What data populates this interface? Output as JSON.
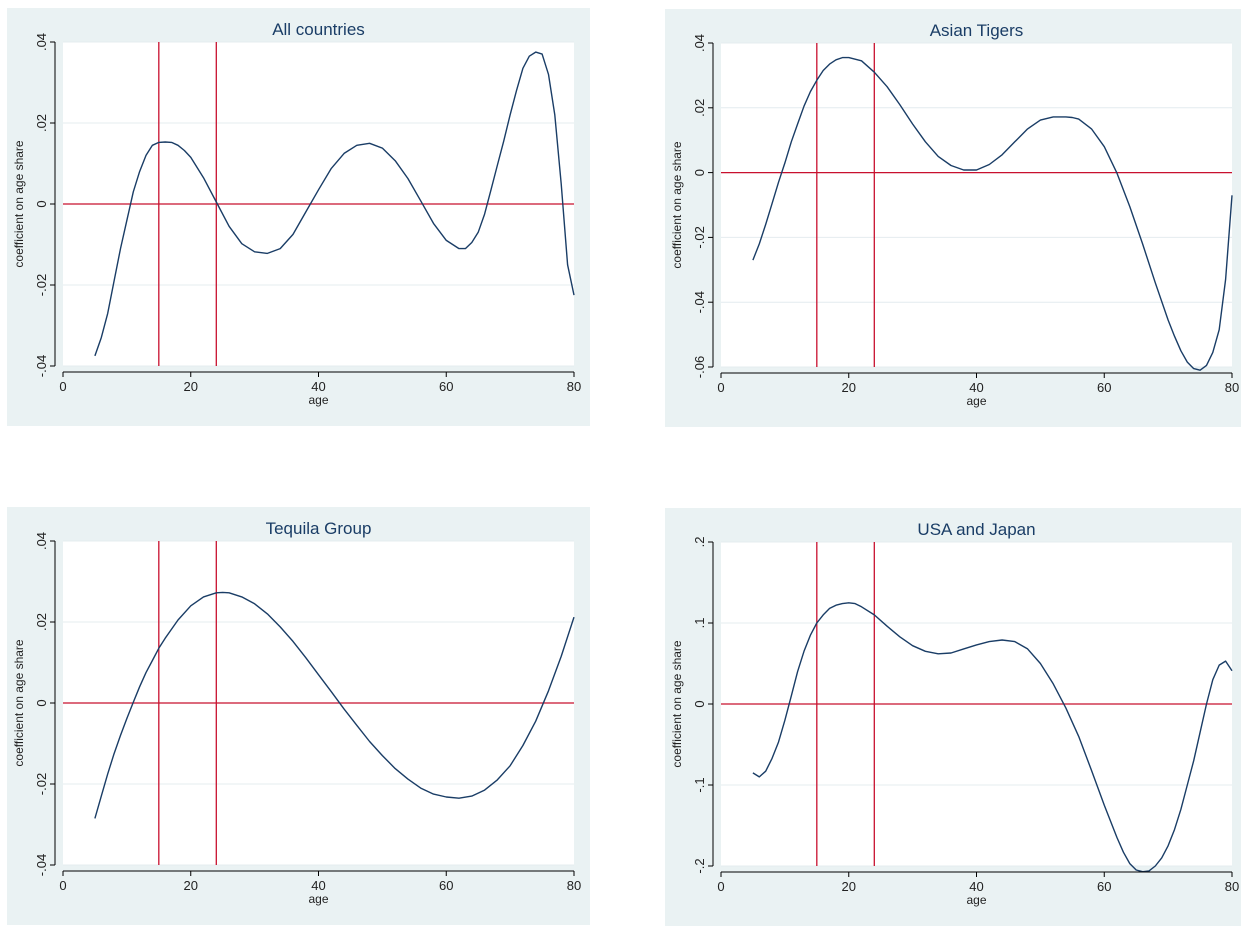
{
  "colors": {
    "panel_background": "#eaf2f3",
    "plot_background": "#ffffff",
    "grid": "#e4ecef",
    "curve": "#1a3d66",
    "reference_lines": "#c8102e",
    "title": "#1a3d66"
  },
  "chart_data": [
    {
      "type": "line",
      "title": "All countries",
      "xlabel": "age",
      "ylabel": "coefficient on age share",
      "xlim": [
        0,
        80
      ],
      "ylim": [
        -0.04,
        0.04
      ],
      "x_ticks": [
        0,
        20,
        40,
        60,
        80
      ],
      "x_tick_labels": [
        "0",
        "20",
        "40",
        "60",
        "80"
      ],
      "y_ticks": [
        -0.04,
        -0.02,
        0,
        0.02,
        0.04
      ],
      "y_tick_labels": [
        "-.04",
        "-.02",
        "0",
        ".02",
        ".04"
      ],
      "reference_lines": {
        "x": [
          15,
          24
        ],
        "y": [
          0
        ]
      },
      "grid": "horizontal",
      "x": [
        5,
        6,
        7,
        8,
        9,
        10,
        11,
        12,
        13,
        14,
        15,
        16,
        17,
        18,
        19,
        20,
        22,
        24,
        26,
        28,
        30,
        32,
        34,
        36,
        38,
        40,
        42,
        44,
        46,
        48,
        50,
        52,
        54,
        56,
        58,
        60,
        62,
        63,
        64,
        65,
        66,
        67,
        68,
        69,
        70,
        71,
        72,
        73,
        74,
        75,
        76,
        77,
        78,
        79,
        80
      ],
      "y": [
        -0.0375,
        -0.033,
        -0.027,
        -0.019,
        -0.011,
        -0.004,
        0.003,
        0.008,
        0.012,
        0.0145,
        0.0152,
        0.0153,
        0.0152,
        0.0145,
        0.0132,
        0.0115,
        0.0065,
        0.0005,
        -0.0055,
        -0.0098,
        -0.0118,
        -0.0122,
        -0.011,
        -0.0075,
        -0.002,
        0.0035,
        0.0088,
        0.0125,
        0.0145,
        0.015,
        0.0138,
        0.0107,
        0.0063,
        0.0008,
        -0.0048,
        -0.009,
        -0.011,
        -0.011,
        -0.0095,
        -0.007,
        -0.0025,
        0.0035,
        0.0095,
        0.0155,
        0.022,
        0.028,
        0.0335,
        0.0365,
        0.0375,
        0.037,
        0.032,
        0.022,
        0.005,
        -0.015,
        -0.0225
      ]
    },
    {
      "type": "line",
      "title": "Asian Tigers",
      "xlabel": "age",
      "ylabel": "coefficient on age share",
      "xlim": [
        0,
        80
      ],
      "ylim": [
        -0.06,
        0.04
      ],
      "x_ticks": [
        0,
        20,
        40,
        60,
        80
      ],
      "x_tick_labels": [
        "0",
        "20",
        "40",
        "60",
        "80"
      ],
      "y_ticks": [
        -0.06,
        -0.04,
        -0.02,
        0,
        0.02,
        0.04
      ],
      "y_tick_labels": [
        "-.06",
        "-.04",
        "-.02",
        "0",
        ".02",
        ".04"
      ],
      "reference_lines": {
        "x": [
          15,
          24
        ],
        "y": [
          0
        ]
      },
      "grid": "horizontal",
      "x": [
        5,
        6,
        7,
        8,
        9,
        10,
        11,
        12,
        13,
        14,
        15,
        16,
        17,
        18,
        19,
        20,
        22,
        24,
        26,
        28,
        30,
        32,
        34,
        36,
        38,
        40,
        42,
        44,
        46,
        48,
        50,
        52,
        54,
        55,
        56,
        58,
        60,
        62,
        64,
        66,
        68,
        70,
        71,
        72,
        73,
        74,
        75,
        76,
        77,
        78,
        79,
        80
      ],
      "y": [
        -0.027,
        -0.022,
        -0.016,
        -0.0095,
        -0.003,
        0.003,
        0.0095,
        0.015,
        0.0205,
        0.025,
        0.0285,
        0.0315,
        0.0335,
        0.0348,
        0.0355,
        0.0355,
        0.0345,
        0.031,
        0.0265,
        0.021,
        0.015,
        0.0095,
        0.005,
        0.0022,
        0.0008,
        0.0008,
        0.0025,
        0.0055,
        0.0095,
        0.0135,
        0.0162,
        0.0172,
        0.0172,
        0.017,
        0.0165,
        0.0135,
        0.008,
        -0.0002,
        -0.0105,
        -0.022,
        -0.034,
        -0.0455,
        -0.0505,
        -0.055,
        -0.0585,
        -0.0605,
        -0.061,
        -0.0595,
        -0.0555,
        -0.0485,
        -0.033,
        -0.007
      ]
    },
    {
      "type": "line",
      "title": "Tequila Group",
      "xlabel": "age",
      "ylabel": "coefficient on age share",
      "xlim": [
        0,
        80
      ],
      "ylim": [
        -0.04,
        0.04
      ],
      "x_ticks": [
        0,
        20,
        40,
        60,
        80
      ],
      "x_tick_labels": [
        "0",
        "20",
        "40",
        "60",
        "80"
      ],
      "y_ticks": [
        -0.04,
        -0.02,
        0,
        0.02,
        0.04
      ],
      "y_tick_labels": [
        "-.04",
        "-.02",
        "0",
        ".02",
        ".04"
      ],
      "reference_lines": {
        "x": [
          15,
          24
        ],
        "y": [
          0
        ]
      },
      "grid": "horizontal",
      "x": [
        5,
        6,
        7,
        8,
        9,
        10,
        11,
        12,
        13,
        14,
        15,
        16,
        18,
        20,
        22,
        24,
        25,
        26,
        28,
        30,
        32,
        34,
        36,
        38,
        40,
        42,
        44,
        46,
        48,
        50,
        52,
        54,
        56,
        58,
        60,
        62,
        64,
        66,
        68,
        70,
        72,
        74,
        76,
        78,
        80
      ],
      "y": [
        -0.0285,
        -0.023,
        -0.0175,
        -0.0125,
        -0.008,
        -0.0038,
        0.0002,
        0.004,
        0.0075,
        0.0105,
        0.0135,
        0.016,
        0.0205,
        0.024,
        0.0262,
        0.0272,
        0.0273,
        0.0272,
        0.0262,
        0.0245,
        0.022,
        0.0188,
        0.0152,
        0.0112,
        0.007,
        0.0028,
        -0.0015,
        -0.0055,
        -0.0095,
        -0.013,
        -0.0162,
        -0.0188,
        -0.021,
        -0.0225,
        -0.0232,
        -0.0235,
        -0.023,
        -0.0215,
        -0.019,
        -0.0155,
        -0.0105,
        -0.0045,
        0.003,
        0.0115,
        0.0212
      ]
    },
    {
      "type": "line",
      "title": "USA and Japan",
      "xlabel": "age",
      "ylabel": "coefficient on age share",
      "xlim": [
        0,
        80
      ],
      "ylim": [
        -0.2,
        0.2
      ],
      "x_ticks": [
        0,
        20,
        40,
        60,
        80
      ],
      "x_tick_labels": [
        "0",
        "20",
        "40",
        "60",
        "80"
      ],
      "y_ticks": [
        -0.2,
        -0.1,
        0,
        0.1,
        0.2
      ],
      "y_tick_labels": [
        "-.2",
        "-.1",
        "0",
        ".1",
        ".2"
      ],
      "reference_lines": {
        "x": [
          15,
          24
        ],
        "y": [
          0
        ]
      },
      "grid": "horizontal",
      "x": [
        5,
        6,
        7,
        8,
        9,
        10,
        11,
        12,
        13,
        14,
        15,
        16,
        17,
        18,
        19,
        20,
        21,
        22,
        24,
        26,
        28,
        30,
        32,
        34,
        36,
        38,
        40,
        42,
        44,
        46,
        48,
        50,
        52,
        54,
        56,
        58,
        60,
        62,
        63,
        64,
        65,
        66,
        67,
        68,
        69,
        70,
        71,
        72,
        73,
        74,
        75,
        76,
        77,
        78,
        79,
        80
      ],
      "y": [
        -0.085,
        -0.09,
        -0.083,
        -0.067,
        -0.047,
        -0.02,
        0.01,
        0.04,
        0.065,
        0.085,
        0.1,
        0.11,
        0.118,
        0.122,
        0.124,
        0.125,
        0.124,
        0.12,
        0.11,
        0.096,
        0.083,
        0.072,
        0.065,
        0.062,
        0.063,
        0.068,
        0.073,
        0.077,
        0.079,
        0.077,
        0.068,
        0.05,
        0.025,
        -0.005,
        -0.04,
        -0.082,
        -0.125,
        -0.165,
        -0.183,
        -0.197,
        -0.205,
        -0.207,
        -0.206,
        -0.2,
        -0.19,
        -0.175,
        -0.155,
        -0.13,
        -0.1,
        -0.07,
        -0.035,
        0.0,
        0.03,
        0.048,
        0.053,
        0.041
      ]
    }
  ]
}
